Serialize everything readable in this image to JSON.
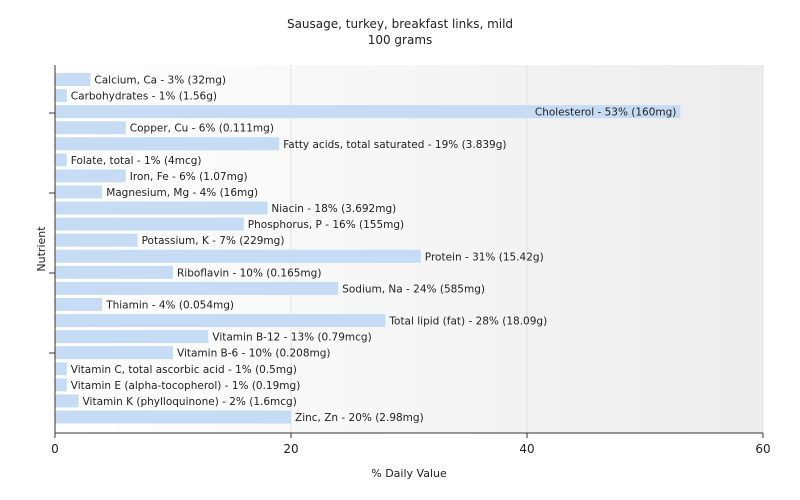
{
  "chart_data": {
    "type": "bar",
    "orientation": "horizontal",
    "title": "Sausage, turkey, breakfast links, mild",
    "subtitle": "100 grams",
    "xlabel": "% Daily Value",
    "ylabel": "Nutrient",
    "xlim": [
      0,
      60
    ],
    "xticks": [
      0,
      20,
      40,
      60
    ],
    "bar_color": "#c6dcf5",
    "categories": [
      "Calcium, Ca",
      "Carbohydrates",
      "Cholesterol",
      "Copper, Cu",
      "Fatty acids, total saturated",
      "Folate, total",
      "Iron, Fe",
      "Magnesium, Mg",
      "Niacin",
      "Phosphorus, P",
      "Potassium, K",
      "Protein",
      "Riboflavin",
      "Sodium, Na",
      "Thiamin",
      "Total lipid (fat)",
      "Vitamin B-12",
      "Vitamin B-6",
      "Vitamin C, total ascorbic acid",
      "Vitamin E (alpha-tocopherol)",
      "Vitamin K (phylloquinone)",
      "Zinc, Zn"
    ],
    "values": [
      3,
      1,
      53,
      6,
      19,
      1,
      6,
      4,
      18,
      16,
      7,
      31,
      10,
      24,
      4,
      28,
      13,
      10,
      1,
      1,
      2,
      20
    ],
    "data_labels": [
      "Calcium, Ca - 3% (32mg)",
      "Carbohydrates - 1% (1.56g)",
      "Cholesterol - 53% (160mg)",
      "Copper, Cu - 6% (0.111mg)",
      "Fatty acids, total saturated - 19% (3.839g)",
      "Folate, total - 1% (4mcg)",
      "Iron, Fe - 6% (1.07mg)",
      "Magnesium, Mg - 4% (16mg)",
      "Niacin - 18% (3.692mg)",
      "Phosphorus, P - 16% (155mg)",
      "Potassium, K - 7% (229mg)",
      "Protein - 31% (15.42g)",
      "Riboflavin - 10% (0.165mg)",
      "Sodium, Na - 24% (585mg)",
      "Thiamin - 4% (0.054mg)",
      "Total lipid (fat) - 28% (18.09g)",
      "Vitamin B-12 - 13% (0.79mcg)",
      "Vitamin B-6 - 10% (0.208mg)",
      "Vitamin C, total ascorbic acid - 1% (0.5mg)",
      "Vitamin E (alpha-tocopherol) - 1% (0.19mg)",
      "Vitamin K (phylloquinone) - 2% (1.6mcg)",
      "Zinc, Zn - 20% (2.98mg)"
    ],
    "grid": true,
    "legend": "none"
  }
}
